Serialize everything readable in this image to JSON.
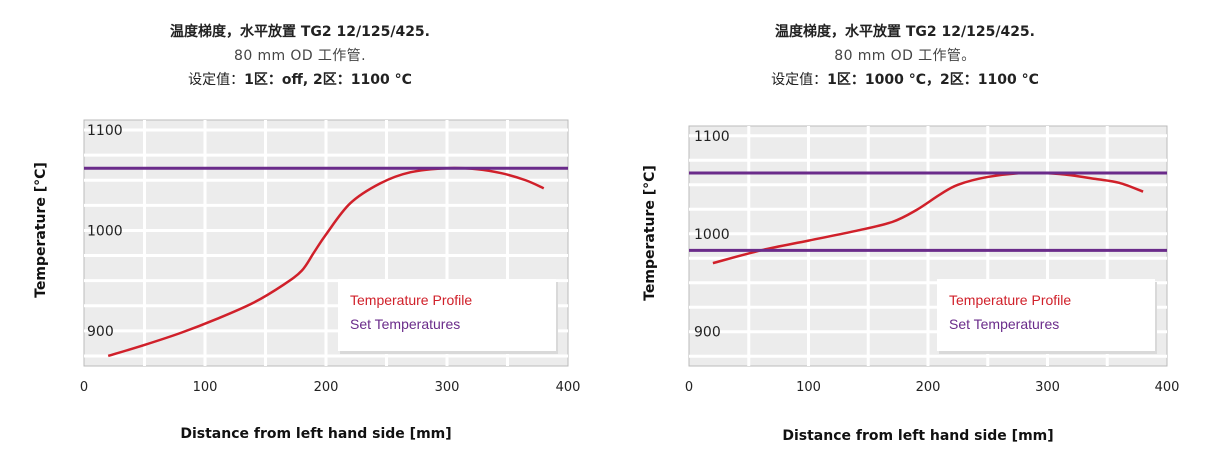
{
  "charts": [
    {
      "title_line1": "温度梯度，水平放置 TG2 12/125/425.",
      "title_line2": "80 mm OD 工作管.",
      "title_line3_prefix": "设定值：",
      "title_line3_bold": "1区：off, 2区：1100 °C"
    },
    {
      "title_line1": "温度梯度，水平放置 TG2 12/125/425.",
      "title_line2": "80 mm OD 工作管。",
      "title_line3_prefix": "设定值：",
      "title_line3_bold": "1区：1000 °C，2区：1100 °C"
    }
  ],
  "colors": {
    "profile": "#d0202a",
    "setpoint": "#6a2b8a",
    "grid": "#cfcfcf",
    "plot_bg": "#ececec"
  },
  "chart_data": [
    {
      "type": "line",
      "xlabel": "Distance from left hand side [mm]",
      "ylabel": "Temperature [°C]",
      "xlim": [
        0,
        400
      ],
      "ylim": [
        865,
        1110
      ],
      "x_ticks": [
        "0",
        "100",
        "200",
        "300",
        "400"
      ],
      "y_ticks": [
        "900",
        "1000",
        "1100"
      ],
      "legend": [
        "Temperature Profile",
        "Set Temperatures"
      ],
      "legend_position": "bottom-right",
      "grid": true,
      "series": [
        {
          "name": "Temperature Profile",
          "x": [
            20,
            50,
            80,
            110,
            140,
            165,
            180,
            190,
            200,
            220,
            245,
            270,
            300,
            325,
            345,
            365,
            380
          ],
          "y": [
            875,
            886,
            898,
            912,
            928,
            946,
            960,
            978,
            996,
            1027,
            1047,
            1058,
            1062,
            1061,
            1057,
            1050,
            1042
          ]
        },
        {
          "name": "Set Temperatures",
          "x": [
            0,
            400
          ],
          "y": [
            1062,
            1062
          ]
        }
      ]
    },
    {
      "type": "line",
      "xlabel": "Distance from left hand side [mm]",
      "ylabel": "Temperature [°C]",
      "xlim": [
        0,
        400
      ],
      "ylim": [
        865,
        1110
      ],
      "x_ticks": [
        "0",
        "100",
        "200",
        "300",
        "400"
      ],
      "y_ticks": [
        "900",
        "1000",
        "1100"
      ],
      "legend": [
        "Temperature Profile",
        "Set Temperatures"
      ],
      "legend_position": "bottom-right",
      "grid": true,
      "series": [
        {
          "name": "Temperature Profile",
          "x": [
            20,
            60,
            100,
            140,
            170,
            190,
            210,
            225,
            250,
            280,
            310,
            340,
            360,
            380
          ],
          "y": [
            970,
            983,
            993,
            1003,
            1012,
            1024,
            1040,
            1050,
            1058,
            1062,
            1061,
            1056,
            1052,
            1043
          ]
        },
        {
          "name": "Set Temperatures",
          "x": [
            0,
            400
          ],
          "y": [
            1062,
            1062
          ]
        },
        {
          "name": "Set Temperatures",
          "x": [
            0,
            400
          ],
          "y": [
            983,
            983
          ]
        }
      ]
    }
  ]
}
